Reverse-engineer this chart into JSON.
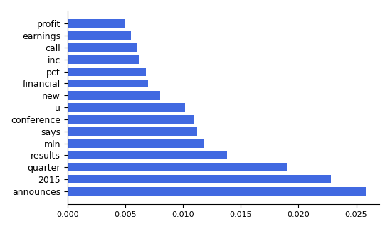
{
  "categories": [
    "announces",
    "2015",
    "quarter",
    "results",
    "mln",
    "says",
    "conference",
    "u",
    "new",
    "financial",
    "pct",
    "inc",
    "call",
    "earnings",
    "profit"
  ],
  "values": [
    0.0258,
    0.0228,
    0.019,
    0.0138,
    0.0118,
    0.0112,
    0.011,
    0.0102,
    0.008,
    0.007,
    0.0068,
    0.0062,
    0.006,
    0.0055,
    0.005
  ],
  "bar_color": "#4169e1",
  "xlim": [
    0,
    0.027
  ],
  "xticks": [
    0.0,
    0.005,
    0.01,
    0.015,
    0.02,
    0.025
  ],
  "background_color": "#ffffff",
  "figsize": [
    5.48,
    3.22
  ],
  "dpi": 100
}
